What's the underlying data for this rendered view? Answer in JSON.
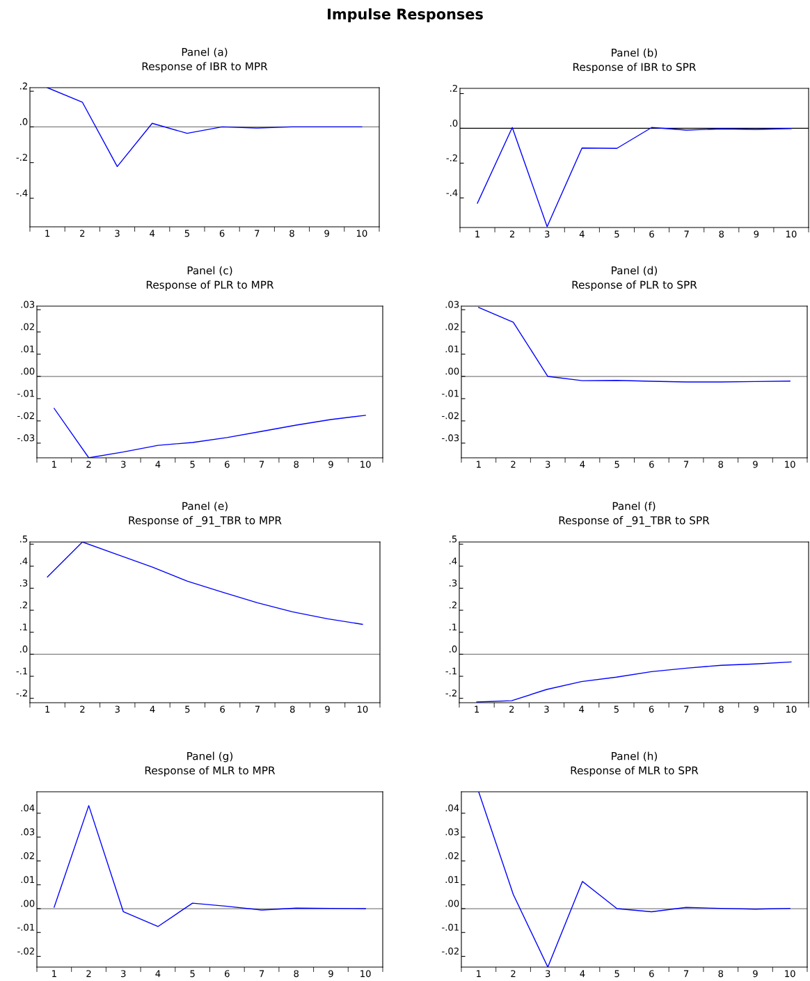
{
  "chart_data": [
    {
      "type": "line",
      "title": "Impulse Responses",
      "subtitle": "Panel (a)\nResponse of IBR to MPR",
      "categories": [
        "1",
        "2",
        "3",
        "4",
        "5",
        "6",
        "7",
        "8",
        "9",
        "10"
      ],
      "series": [
        {
          "color": "#0000ff",
          "values": [
            0.22,
            0.139,
            -0.222,
            0.02,
            -0.036,
            0.0,
            -0.006,
            0.0,
            0.0,
            0.0
          ]
        }
      ],
      "ylim": [
        -0.56,
        0.22
      ],
      "yticks": [
        {
          "value": 0.2,
          "label": ".2"
        },
        {
          "value": 0.0,
          "label": ".0"
        },
        {
          "value": -0.2,
          "label": "-.2"
        },
        {
          "value": -0.4,
          "label": "-.4"
        }
      ],
      "ref_lines": [
        {
          "axis": "y",
          "value": 0,
          "color": "#808080"
        }
      ],
      "grid": false
    },
    {
      "type": "line",
      "subtitle": "Panel (b)\nResponse of IBR to SPR",
      "categories": [
        "1",
        "2",
        "3",
        "4",
        "5",
        "6",
        "7",
        "8",
        "9",
        "10"
      ],
      "series": [
        {
          "color": "#0000ff",
          "values": [
            -0.43,
            0.005,
            -0.565,
            -0.113,
            -0.115,
            0.005,
            -0.01,
            -0.003,
            -0.006,
            -0.001
          ]
        }
      ],
      "ylim": [
        -0.57,
        0.23
      ],
      "yticks": [
        {
          "value": 0.2,
          "label": ".2"
        },
        {
          "value": 0.0,
          "label": ".0"
        },
        {
          "value": -0.2,
          "label": "-.2"
        },
        {
          "value": -0.4,
          "label": "-.4"
        }
      ],
      "ref_lines": [
        {
          "axis": "y",
          "value": 0,
          "color": "#000000"
        }
      ],
      "grid": false
    },
    {
      "type": "line",
      "subtitle": "Panel (c)\nResponse of PLR to MPR",
      "categories": [
        "1",
        "2",
        "3",
        "4",
        "5",
        "6",
        "7",
        "8",
        "9",
        "10"
      ],
      "series": [
        {
          "color": "#0000ff",
          "values": [
            -0.0144,
            -0.0366,
            -0.034,
            -0.031,
            -0.0297,
            -0.0275,
            -0.0247,
            -0.0219,
            -0.0194,
            -0.0175
          ]
        }
      ],
      "ylim": [
        -0.0366,
        0.0316
      ],
      "yticks": [
        {
          "value": 0.03,
          "label": ".03"
        },
        {
          "value": 0.02,
          "label": ".02"
        },
        {
          "value": 0.01,
          "label": ".01"
        },
        {
          "value": 0.0,
          "label": ".00"
        },
        {
          "value": -0.01,
          "label": "-.01"
        },
        {
          "value": -0.02,
          "label": "-.02"
        },
        {
          "value": -0.03,
          "label": "-.03"
        }
      ],
      "ref_lines": [
        {
          "axis": "y",
          "value": 0,
          "color": "#808080"
        }
      ],
      "grid": false
    },
    {
      "type": "line",
      "subtitle": "Panel (d)\nResponse of PLR to SPR",
      "categories": [
        "1",
        "2",
        "3",
        "4",
        "5",
        "6",
        "7",
        "8",
        "9",
        "10"
      ],
      "series": [
        {
          "color": "#0000ff",
          "values": [
            0.031,
            0.0244,
            0.0,
            -0.0019,
            -0.0018,
            -0.0022,
            -0.0025,
            -0.0025,
            -0.0023,
            -0.0021
          ]
        }
      ],
      "ylim": [
        -0.0366,
        0.0316
      ],
      "yticks": [
        {
          "value": 0.03,
          "label": ".03"
        },
        {
          "value": 0.02,
          "label": ".02"
        },
        {
          "value": 0.01,
          "label": ".01"
        },
        {
          "value": 0.0,
          "label": ".00"
        },
        {
          "value": -0.01,
          "label": "-.01"
        },
        {
          "value": -0.02,
          "label": "-.02"
        },
        {
          "value": -0.03,
          "label": "-.03"
        }
      ],
      "ref_lines": [
        {
          "axis": "y",
          "value": 0,
          "color": "#808080"
        }
      ],
      "grid": false
    },
    {
      "type": "line",
      "subtitle": "Panel (e)\nResponse of _91_TBR to MPR",
      "categories": [
        "1",
        "2",
        "3",
        "4",
        "5",
        "6",
        "7",
        "8",
        "9",
        "10"
      ],
      "series": [
        {
          "color": "#0000ff",
          "values": [
            0.351,
            0.51,
            0.453,
            0.396,
            0.332,
            0.282,
            0.234,
            0.193,
            0.161,
            0.136
          ]
        }
      ],
      "ylim": [
        -0.22,
        0.51
      ],
      "yticks": [
        {
          "value": 0.5,
          "label": ".5"
        },
        {
          "value": 0.4,
          "label": ".4"
        },
        {
          "value": 0.3,
          "label": ".3"
        },
        {
          "value": 0.2,
          "label": ".2"
        },
        {
          "value": 0.1,
          "label": ".1"
        },
        {
          "value": 0.0,
          "label": ".0"
        },
        {
          "value": -0.1,
          "label": "-.1"
        },
        {
          "value": -0.2,
          "label": "-.2"
        }
      ],
      "ref_lines": [
        {
          "axis": "y",
          "value": 0,
          "color": "#808080"
        }
      ],
      "grid": false
    },
    {
      "type": "line",
      "subtitle": "Panel (f)\nResponse of _91_TBR to SPR",
      "categories": [
        "1",
        "2",
        "3",
        "4",
        "5",
        "6",
        "7",
        "8",
        "9",
        "10"
      ],
      "series": [
        {
          "color": "#0000ff",
          "values": [
            -0.217,
            -0.211,
            -0.16,
            -0.124,
            -0.104,
            -0.079,
            -0.063,
            -0.05,
            -0.044,
            -0.035
          ]
        }
      ],
      "ylim": [
        -0.22,
        0.51
      ],
      "yticks": [
        {
          "value": 0.5,
          "label": ".5"
        },
        {
          "value": 0.4,
          "label": ".4"
        },
        {
          "value": 0.3,
          "label": ".3"
        },
        {
          "value": 0.2,
          "label": ".2"
        },
        {
          "value": 0.1,
          "label": ".1"
        },
        {
          "value": 0.0,
          "label": ".0"
        },
        {
          "value": -0.1,
          "label": "-.1"
        },
        {
          "value": -0.2,
          "label": "-.2"
        }
      ],
      "ref_lines": [
        {
          "axis": "y",
          "value": 0,
          "color": "#808080"
        }
      ],
      "grid": false
    },
    {
      "type": "line",
      "subtitle": "Panel (g)\nResponse of MLR to MPR",
      "categories": [
        "1",
        "2",
        "3",
        "4",
        "5",
        "6",
        "7",
        "8",
        "9",
        "10"
      ],
      "series": [
        {
          "color": "#0000ff",
          "values": [
            0.0006,
            0.0432,
            -0.0013,
            -0.0075,
            0.0023,
            0.001,
            -0.0006,
            0.0002,
            0.0001,
            0.0
          ]
        }
      ],
      "ylim": [
        -0.0245,
        0.049
      ],
      "yticks": [
        {
          "value": 0.04,
          "label": ".04"
        },
        {
          "value": 0.03,
          "label": ".03"
        },
        {
          "value": 0.02,
          "label": ".02"
        },
        {
          "value": 0.01,
          "label": ".01"
        },
        {
          "value": 0.0,
          "label": ".00"
        },
        {
          "value": -0.01,
          "label": "-.01"
        },
        {
          "value": -0.02,
          "label": "-.02"
        }
      ],
      "ref_lines": [
        {
          "axis": "y",
          "value": 0,
          "color": "#808080"
        }
      ],
      "grid": false
    },
    {
      "type": "line",
      "subtitle": "Panel (h)\nResponse of MLR to SPR",
      "categories": [
        "1",
        "2",
        "3",
        "4",
        "5",
        "6",
        "7",
        "8",
        "9",
        "10"
      ],
      "series": [
        {
          "color": "#0000ff",
          "values": [
            0.049,
            0.006,
            -0.0245,
            0.0114,
            0.0,
            -0.0013,
            0.0005,
            0.0001,
            -0.0002,
            0.0001
          ]
        }
      ],
      "ylim": [
        -0.0245,
        0.049
      ],
      "yticks": [
        {
          "value": 0.04,
          "label": ".04"
        },
        {
          "value": 0.03,
          "label": ".03"
        },
        {
          "value": 0.02,
          "label": ".02"
        },
        {
          "value": 0.01,
          "label": ".01"
        },
        {
          "value": 0.0,
          "label": ".00"
        },
        {
          "value": -0.01,
          "label": "-.01"
        },
        {
          "value": -0.02,
          "label": "-.02"
        }
      ],
      "ref_lines": [
        {
          "axis": "y",
          "value": 0,
          "color": "#808080"
        }
      ],
      "grid": false
    }
  ]
}
